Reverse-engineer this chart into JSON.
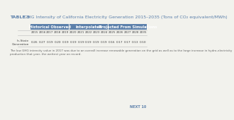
{
  "title_bold": "TABLE 5",
  "title_rest": " GHG Intensity of California Electricity Generation 2015–2035 (Tons of CO₂ equivalent/MWh)",
  "section_headers": [
    "Historical Observed",
    "Interpolated",
    "Projected From Simulations"
  ],
  "section_header_color": "#5b7faa",
  "years": [
    "2015",
    "2016",
    "2017",
    "2018",
    "2019",
    "2020",
    "2021",
    "2022",
    "2023",
    "2024",
    "2025",
    "2026",
    "2027",
    "2028",
    "2035"
  ],
  "row_label_line1": "In-State",
  "row_label_line2": "Generation",
  "values": [
    "0.26",
    "0.27",
    "0.19",
    "0.20",
    "0.19",
    "0.19",
    "0.19",
    "0.19",
    "0.19",
    "0.19",
    "0.16",
    "0.17",
    "0.17",
    "0.13",
    "0.10"
  ],
  "section_spans": [
    5,
    5,
    5
  ],
  "footnote": "The low GHG intensity value in 2017 was due to an overall increase renewable generation on the grid as well as to the large increase in hydro-electricity production that year, the wettest year on record.",
  "next_text": "NEXT 10",
  "background_color": "#f2f2ed",
  "line_color": "#bbbbbb",
  "text_color": "#444444",
  "header_text_color": "#ffffff"
}
